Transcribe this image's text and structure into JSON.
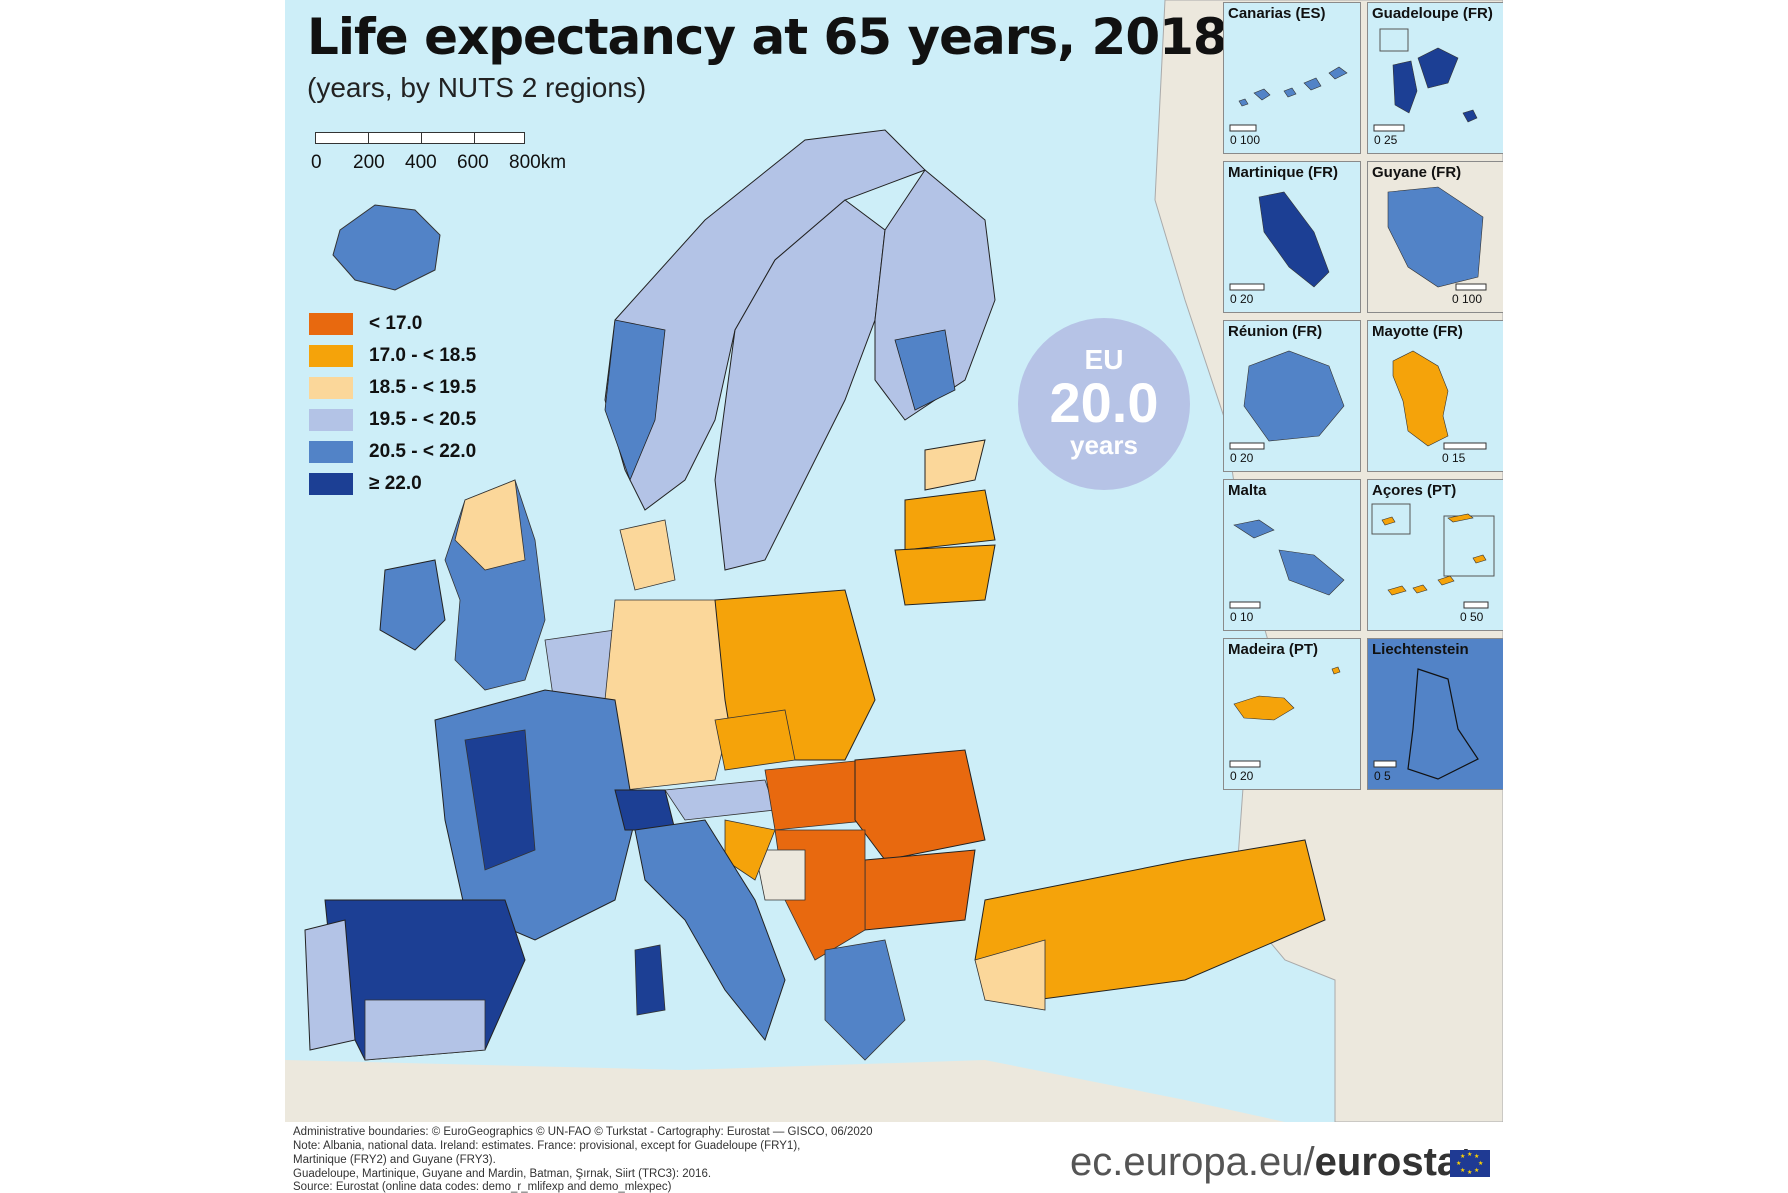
{
  "title": "Life expectancy at 65 years, 2018",
  "subtitle": "(years, by NUTS 2 regions)",
  "scale": {
    "labels": [
      "0",
      "200",
      "400",
      "600",
      "800km"
    ]
  },
  "legend": {
    "items": [
      {
        "label": "< 17.0",
        "color": "#e8690f"
      },
      {
        "label": "17.0 - < 18.5",
        "color": "#f5a30a"
      },
      {
        "label": "18.5 - < 19.5",
        "color": "#fbd79a"
      },
      {
        "label": "19.5 - < 20.5",
        "color": "#b3c3e6"
      },
      {
        "label": "20.5 - < 22.0",
        "color": "#5283c7"
      },
      {
        "label": "≥ 22.0",
        "color": "#1c3f94"
      }
    ]
  },
  "eu_average": {
    "label": "EU",
    "value": "20.0",
    "unit": "years"
  },
  "insets": [
    {
      "title": "Canarias (ES)",
      "scale": "0 100"
    },
    {
      "title": "Guadeloupe (FR)",
      "scale": "0 25"
    },
    {
      "title": "Martinique (FR)",
      "scale": "0 20"
    },
    {
      "title": "Guyane (FR)",
      "scale": "0 100"
    },
    {
      "title": "Réunion (FR)",
      "scale": "0 20"
    },
    {
      "title": "Mayotte (FR)",
      "scale": "0 15"
    },
    {
      "title": "Malta",
      "scale": "0 10"
    },
    {
      "title": "Açores (PT)",
      "scale": "0 50"
    },
    {
      "title": "Madeira (PT)",
      "scale": "0 20"
    },
    {
      "title": "Liechtenstein",
      "scale": "0 5"
    }
  ],
  "footnotes": [
    "Administrative boundaries: © EuroGeographics © UN-FAO © Turkstat - Cartography: Eurostat — GISCO, 06/2020",
    "Note: Albania, national data. Ireland: estimates. France: provisional, except for Guadeloupe (FRY1),",
    "Martinique (FRY2) and Guyane (FRY3).",
    "Guadeloupe, Martinique, Guyane and Mardin, Batman, Şırnak, Siirt (TRC3): 2016.",
    "Source: Eurostat (online data codes: demo_r_mlifexp and demo_mlexpec)"
  ],
  "brand": {
    "prefix": "ec.europa.eu/",
    "name": "eurostat"
  },
  "colors": {
    "sea": "#cdeef8",
    "non_eu_land": "#ece8dd"
  }
}
